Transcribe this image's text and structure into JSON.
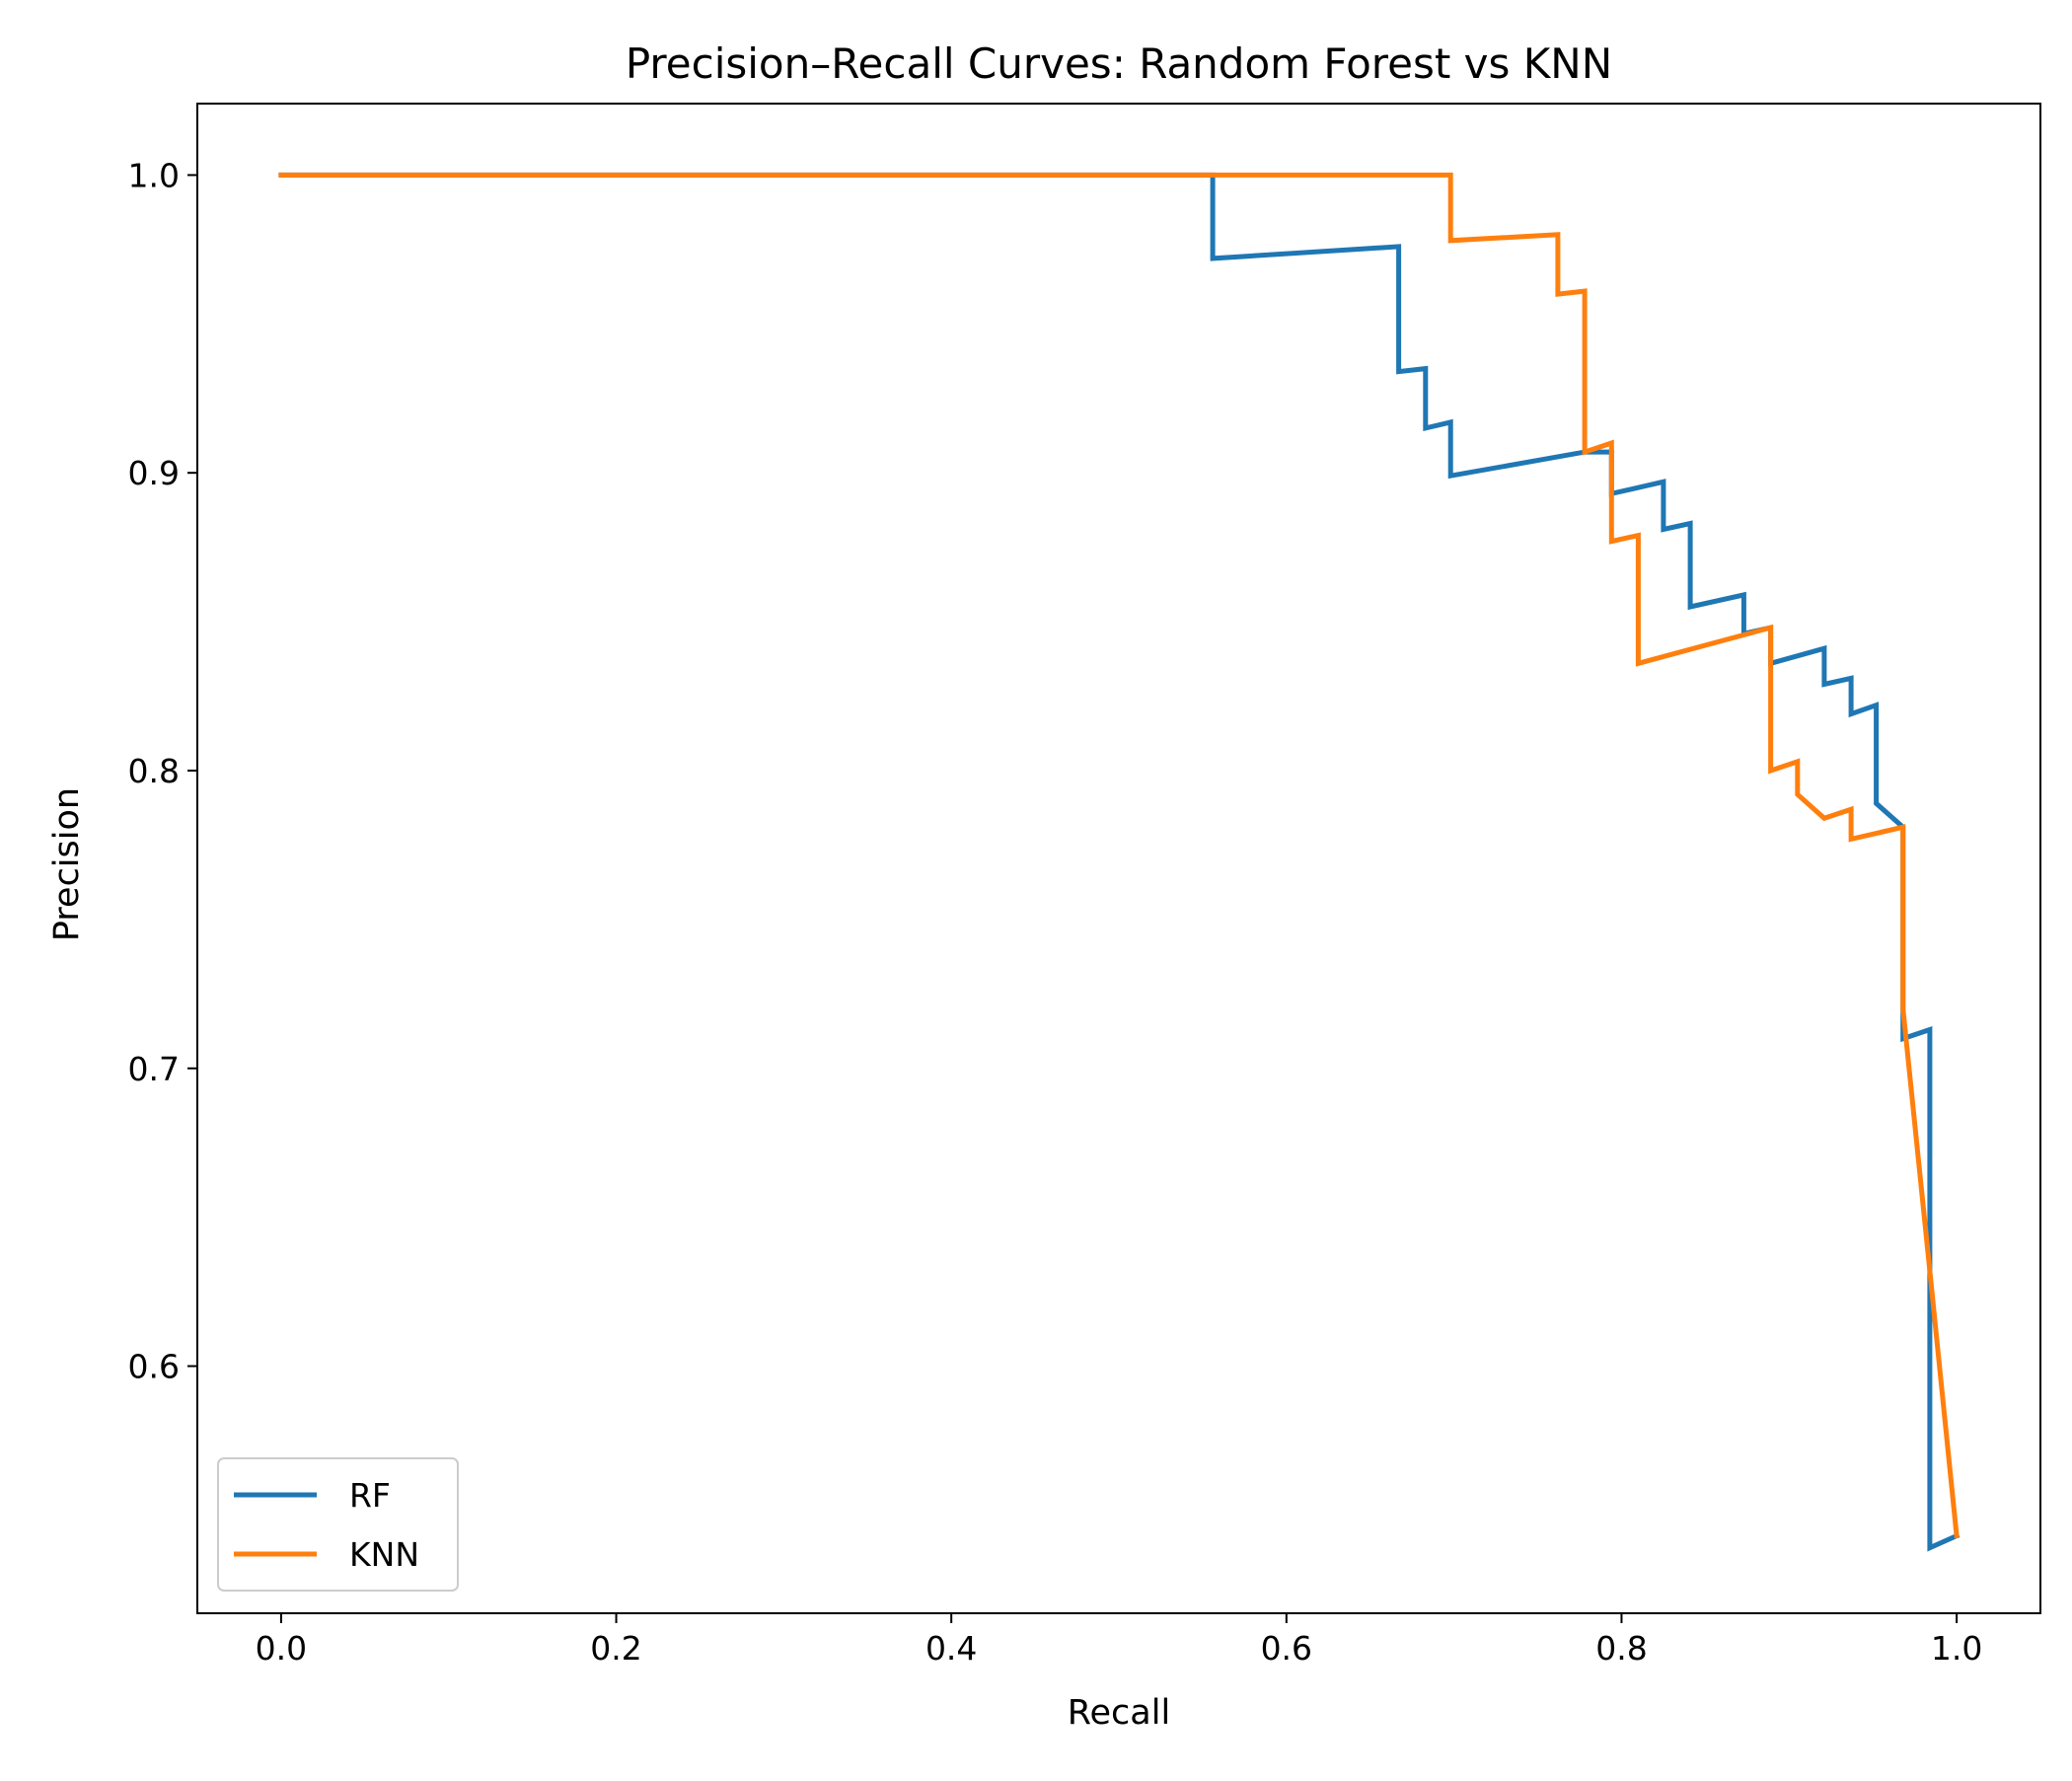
{
  "chart_data": {
    "type": "line",
    "title": "Precision–Recall Curves: Random Forest vs KNN",
    "xlabel": "Recall",
    "ylabel": "Precision",
    "xlim": [
      -0.05,
      1.05
    ],
    "ylim": [
      0.517,
      1.024
    ],
    "xticks": [
      0.0,
      0.2,
      0.4,
      0.6,
      0.8,
      1.0
    ],
    "xtick_labels": [
      "0.0",
      "0.2",
      "0.4",
      "0.6",
      "0.8",
      "1.0"
    ],
    "yticks": [
      0.6,
      0.7,
      0.8,
      0.9,
      1.0
    ],
    "ytick_labels": [
      "0.6",
      "0.7",
      "0.8",
      "0.9",
      "1.0"
    ],
    "grid": false,
    "legend_position": "lower-left",
    "series": [
      {
        "name": "RF",
        "color": "#1f77b4",
        "points": [
          [
            0.0,
            1.0
          ],
          [
            0.556,
            1.0
          ],
          [
            0.556,
            0.972
          ],
          [
            0.667,
            0.976
          ],
          [
            0.667,
            0.934
          ],
          [
            0.683,
            0.935
          ],
          [
            0.683,
            0.915
          ],
          [
            0.698,
            0.917
          ],
          [
            0.698,
            0.899
          ],
          [
            0.778,
            0.907
          ],
          [
            0.794,
            0.907
          ],
          [
            0.794,
            0.893
          ],
          [
            0.825,
            0.897
          ],
          [
            0.825,
            0.881
          ],
          [
            0.841,
            0.883
          ],
          [
            0.841,
            0.855
          ],
          [
            0.873,
            0.859
          ],
          [
            0.873,
            0.846
          ],
          [
            0.889,
            0.848
          ],
          [
            0.889,
            0.836
          ],
          [
            0.921,
            0.841
          ],
          [
            0.921,
            0.829
          ],
          [
            0.937,
            0.831
          ],
          [
            0.937,
            0.819
          ],
          [
            0.952,
            0.822
          ],
          [
            0.952,
            0.789
          ],
          [
            0.968,
            0.781
          ],
          [
            0.968,
            0.71
          ],
          [
            0.984,
            0.713
          ],
          [
            0.984,
            0.539
          ],
          [
            1.0,
            0.543
          ]
        ]
      },
      {
        "name": "KNN",
        "color": "#ff7f0e",
        "points": [
          [
            0.0,
            1.0
          ],
          [
            0.698,
            1.0
          ],
          [
            0.698,
            0.978
          ],
          [
            0.762,
            0.98
          ],
          [
            0.762,
            0.96
          ],
          [
            0.778,
            0.961
          ],
          [
            0.778,
            0.907
          ],
          [
            0.794,
            0.91
          ],
          [
            0.794,
            0.877
          ],
          [
            0.81,
            0.879
          ],
          [
            0.81,
            0.836
          ],
          [
            0.889,
            0.848
          ],
          [
            0.889,
            0.8
          ],
          [
            0.905,
            0.803
          ],
          [
            0.905,
            0.792
          ],
          [
            0.921,
            0.784
          ],
          [
            0.937,
            0.787
          ],
          [
            0.937,
            0.777
          ],
          [
            0.968,
            0.781
          ],
          [
            0.968,
            0.72
          ],
          [
            0.984,
            0.632
          ],
          [
            1.0,
            0.543
          ]
        ]
      }
    ]
  }
}
